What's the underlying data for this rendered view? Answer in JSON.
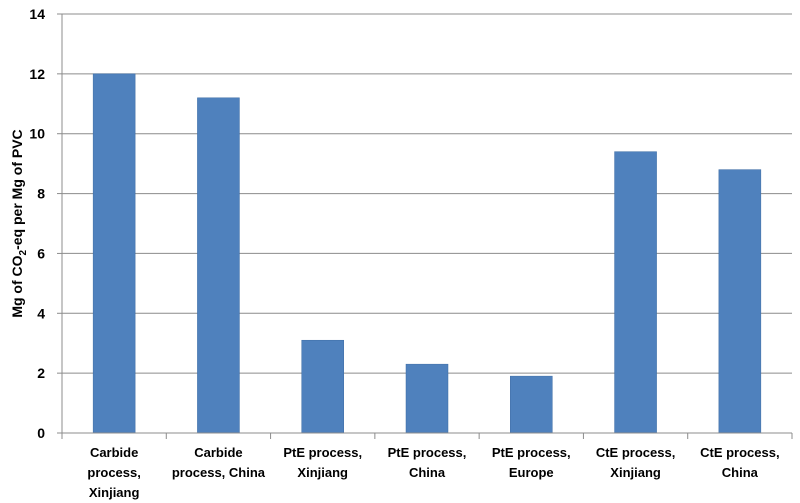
{
  "chart_data": {
    "type": "bar",
    "categories": [
      [
        "Carbide",
        "process,",
        "Xinjiang"
      ],
      [
        "Carbide",
        "process, China"
      ],
      [
        "PtE process,",
        "Xinjiang"
      ],
      [
        "PtE process,",
        "China"
      ],
      [
        "PtE process,",
        "Europe"
      ],
      [
        "CtE process,",
        "Xinjiang"
      ],
      [
        "CtE process,",
        "China"
      ]
    ],
    "values": [
      12.0,
      11.2,
      3.1,
      2.3,
      1.9,
      9.4,
      8.8
    ],
    "ylabel": {
      "prefix": "Mg of CO",
      "sub": "2",
      "suffix": "-eq per Mg of PVC"
    },
    "ylim": [
      0,
      14
    ],
    "yticks": [
      "0",
      "2",
      "4",
      "6",
      "8",
      "10",
      "12",
      "14"
    ],
    "grid": true,
    "colors": {
      "bar": "#4f81bd",
      "bar_edge": "#3a6aa3",
      "grid": "#8c8c8c",
      "axis": "#8c8c8c"
    }
  }
}
